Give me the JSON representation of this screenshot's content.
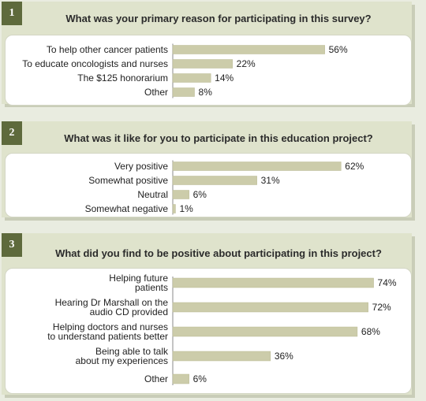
{
  "chart_data": [
    {
      "type": "bar",
      "number": "1",
      "title": "What was your primary reason for participating in this survey?",
      "categories": [
        [
          "To help other cancer patients"
        ],
        [
          "To educate oncologists and nurses"
        ],
        [
          "The $125 honorarium"
        ],
        [
          "Other"
        ]
      ],
      "values": [
        56,
        22,
        14,
        8
      ],
      "value_labels": [
        "56%",
        "22%",
        "14%",
        "8%"
      ]
    },
    {
      "type": "bar",
      "number": "2",
      "title": "What was it like for you to participate in this education project?",
      "categories": [
        [
          "Very positive"
        ],
        [
          "Somewhat positive"
        ],
        [
          "Neutral"
        ],
        [
          "Somewhat negative"
        ]
      ],
      "values": [
        62,
        31,
        6,
        1
      ],
      "value_labels": [
        "62%",
        "31%",
        "6%",
        "1%"
      ]
    },
    {
      "type": "bar",
      "number": "3",
      "title": "What did you find to be positive about participating in this project?",
      "categories": [
        [
          "Helping future",
          "patients"
        ],
        [
          "Hearing Dr Marshall on the",
          "audio CD provided"
        ],
        [
          "Helping doctors and nurses",
          "to understand patients better"
        ],
        [
          "Being able to talk",
          "about my experiences"
        ],
        [
          "Other"
        ]
      ],
      "values": [
        74,
        72,
        68,
        36,
        6
      ],
      "value_labels": [
        "74%",
        "72%",
        "68%",
        "36%",
        "6%"
      ]
    }
  ],
  "colors": {
    "bar": "#ccccaa",
    "header": "#5e6a3c",
    "panel": "#dfe3cc"
  }
}
